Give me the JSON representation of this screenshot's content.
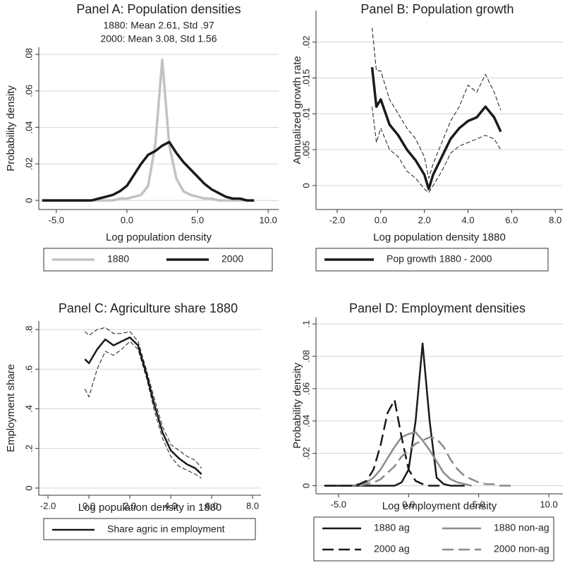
{
  "chart_data": [
    {
      "type": "line",
      "title": "Panel A: Population densities",
      "subtitle": [
        "1880: Mean 2.61, Std .97",
        "2000: Mean 3.08, Std 1.56"
      ],
      "x_label": "Log population density",
      "y_label": "Probability density",
      "x": [
        -6,
        -5.5,
        -5,
        -4.5,
        -4,
        -3.5,
        -3,
        -2.5,
        -2,
        -1.5,
        -1,
        -0.5,
        0,
        0.5,
        1,
        1.5,
        2,
        2.5,
        3,
        3.5,
        4,
        4.5,
        5,
        5.5,
        6,
        6.5,
        7,
        7.5,
        8,
        8.5,
        9
      ],
      "series": [
        {
          "name": "1880",
          "color": "#c2c2c2",
          "dashed": false,
          "linewidth": 3.5,
          "values": [
            0,
            0,
            0,
            0,
            0,
            0,
            0,
            0,
            0,
            0,
            0,
            0.001,
            0.001,
            0.002,
            0.003,
            0.008,
            0.03,
            0.077,
            0.03,
            0.012,
            0.005,
            0.003,
            0.002,
            0.001,
            0.001,
            0,
            0,
            0,
            0,
            0,
            0
          ]
        },
        {
          "name": "2000",
          "color": "#1a1a1a",
          "dashed": false,
          "linewidth": 3.5,
          "values": [
            0,
            0,
            0,
            0,
            0,
            0,
            0,
            0,
            0.001,
            0.002,
            0.003,
            0.005,
            0.008,
            0.014,
            0.02,
            0.025,
            0.027,
            0.03,
            0.032,
            0.026,
            0.021,
            0.017,
            0.013,
            0.009,
            0.006,
            0.004,
            0.002,
            0.001,
            0.001,
            0,
            0
          ]
        }
      ],
      "xlim": [
        -6.24,
        10.74
      ],
      "ylim": [
        -0.005,
        0.0839
      ],
      "xticks": [
        {
          "value": -5,
          "label": "-5.0"
        },
        {
          "value": 0,
          "label": "0.0"
        },
        {
          "value": 5,
          "label": "5.0"
        },
        {
          "value": 10,
          "label": "10.0"
        }
      ],
      "yticks": [
        0,
        {
          "value": 0.02,
          "label": ".02"
        },
        {
          "value": 0.04,
          "label": ".04"
        },
        {
          "value": 0.06,
          "label": ".06"
        },
        {
          "value": 0.08,
          "label": ".08"
        }
      ],
      "grid": true
    },
    {
      "type": "line",
      "title": "Panel B: Population growth",
      "x_label": "Log population density 1880",
      "y_label": "Annualized growth rate",
      "x": [
        -0.4,
        -0.2,
        0,
        0.4,
        0.8,
        1.2,
        1.6,
        2.0,
        2.2,
        2.4,
        2.8,
        3.2,
        3.6,
        4.0,
        4.4,
        4.8,
        5.2,
        5.5
      ],
      "series": [
        {
          "name": "Pop growth 1880 - 2000",
          "color": "#1a1a1a",
          "dashed": false,
          "linewidth": 3.5,
          "values": [
            0.0165,
            0.011,
            0.012,
            0.0085,
            0.007,
            0.005,
            0.0035,
            0.0015,
            -0.0005,
            0.0015,
            0.004,
            0.0065,
            0.008,
            0.009,
            0.0095,
            0.011,
            0.0095,
            0.0075
          ]
        },
        {
          "color": "#1a1a1a",
          "dashed": true,
          "linewidth": 1,
          "values": [
            0.022,
            0.016,
            0.016,
            0.012,
            0.01,
            0.008,
            0.0065,
            0.004,
            0.001,
            0.003,
            0.006,
            0.009,
            0.011,
            0.014,
            0.013,
            0.0155,
            0.013,
            0.0105
          ]
        },
        {
          "color": "#1a1a1a",
          "dashed": true,
          "linewidth": 1,
          "values": [
            0.011,
            0.006,
            0.008,
            0.005,
            0.004,
            0.002,
            0.001,
            -0.0005,
            -0.001,
            0,
            0.002,
            0.0045,
            0.0055,
            0.006,
            0.0065,
            0.007,
            0.0065,
            0.005
          ]
        }
      ],
      "xlim": [
        -2.97,
        8.35
      ],
      "ylim": [
        -0.00335,
        0.0244
      ],
      "xticks": [
        {
          "value": -2,
          "label": "-2.0"
        },
        {
          "value": 0,
          "label": "0.0"
        },
        {
          "value": 2,
          "label": "2.0"
        },
        {
          "value": 4,
          "label": "4.0"
        },
        {
          "value": 6,
          "label": "6.0"
        },
        {
          "value": 8,
          "label": "8.0"
        }
      ],
      "yticks": [
        0,
        {
          "value": 0.005,
          "label": ".005"
        },
        {
          "value": 0.01,
          "label": ".01"
        },
        {
          "value": 0.015,
          "label": ".015"
        },
        {
          "value": 0.02,
          "label": ".02"
        }
      ],
      "grid": true
    },
    {
      "type": "line",
      "title": "Panel C: Agriculture share 1880",
      "x_label": "Log population density in 1880",
      "y_label": "Employment share",
      "x": [
        -0.2,
        0,
        0.4,
        0.8,
        1.2,
        1.6,
        2.0,
        2.4,
        2.8,
        3.2,
        3.6,
        4.0,
        4.4,
        4.8,
        5.2,
        5.5
      ],
      "series": [
        {
          "name": "Share agric in employment",
          "color": "#1a1a1a",
          "dashed": false,
          "linewidth": 2.5,
          "values": [
            0.65,
            0.63,
            0.7,
            0.75,
            0.72,
            0.74,
            0.76,
            0.72,
            0.58,
            0.42,
            0.28,
            0.19,
            0.15,
            0.12,
            0.1,
            0.07
          ]
        },
        {
          "color": "#1a1a1a",
          "dashed": true,
          "linewidth": 1,
          "values": [
            0.79,
            0.77,
            0.8,
            0.81,
            0.78,
            0.78,
            0.79,
            0.74,
            0.6,
            0.45,
            0.31,
            0.22,
            0.19,
            0.16,
            0.14,
            0.1
          ]
        },
        {
          "color": "#1a1a1a",
          "dashed": true,
          "linewidth": 1,
          "values": [
            0.5,
            0.46,
            0.6,
            0.69,
            0.67,
            0.7,
            0.74,
            0.7,
            0.56,
            0.39,
            0.25,
            0.16,
            0.11,
            0.09,
            0.07,
            0.05
          ]
        }
      ],
      "xlim": [
        -2.45,
        8.41
      ],
      "ylim": [
        -0.036,
        0.843
      ],
      "xticks": [
        {
          "value": -2,
          "label": "-2.0"
        },
        {
          "value": 0,
          "label": "0.0"
        },
        {
          "value": 2,
          "label": "2.0"
        },
        {
          "value": 4,
          "label": "4.0"
        },
        {
          "value": 6,
          "label": "6.0"
        },
        {
          "value": 8,
          "label": "8.0"
        }
      ],
      "yticks": [
        0,
        {
          "value": 0.2,
          "label": ".2"
        },
        {
          "value": 0.4,
          "label": ".4"
        },
        {
          "value": 0.6,
          "label": ".6"
        },
        {
          "value": 0.8,
          "label": ".8"
        }
      ],
      "grid": true
    },
    {
      "type": "line",
      "title": "Panel D: Employment densities",
      "x_label": "Log employment density",
      "y_label": "Probability density",
      "x": [
        -6,
        -5.5,
        -5,
        -4.5,
        -4,
        -3.5,
        -3,
        -2.5,
        -2,
        -1.5,
        -1,
        -0.5,
        0,
        0.5,
        1,
        1.5,
        2,
        2.5,
        3,
        3.5,
        4,
        4.5,
        5,
        5.5,
        6,
        6.5,
        7,
        7.5
      ],
      "series": [
        {
          "name": "1880 ag",
          "color": "#1a1a1a",
          "dashed": false,
          "linewidth": 2.5,
          "values": [
            0,
            0,
            0,
            0,
            0,
            0,
            0,
            0,
            0,
            0,
            0,
            0.002,
            0.01,
            0.04,
            0.088,
            0.04,
            0.005,
            0.001,
            0,
            0,
            0,
            null,
            null,
            null,
            null,
            null,
            null,
            null
          ]
        },
        {
          "name": "1880 non-ag",
          "color": "#8a8a8a",
          "dashed": false,
          "linewidth": 2.5,
          "values": [
            null,
            null,
            null,
            null,
            0,
            0.001,
            0.002,
            0.005,
            0.01,
            0.017,
            0.024,
            0.03,
            0.032,
            0.033,
            0.028,
            0.022,
            0.015,
            0.008,
            0.004,
            0.002,
            0.001,
            0,
            null,
            null,
            null,
            null,
            null,
            null
          ]
        },
        {
          "name": "2000 ag",
          "color": "#1a1a1a",
          "dashed": true,
          "linewidth": 2.5,
          "values": [
            0,
            0,
            0,
            0,
            0,
            0.001,
            0.003,
            0.01,
            0.025,
            0.045,
            0.053,
            0.03,
            0.01,
            0.003,
            0.001,
            0,
            0,
            0,
            null,
            null,
            null,
            null,
            null,
            null,
            null,
            null,
            null,
            null
          ]
        },
        {
          "name": "2000 non-ag",
          "color": "#8a8a8a",
          "dashed": true,
          "linewidth": 2.5,
          "values": [
            null,
            null,
            null,
            null,
            null,
            0,
            0.001,
            0.002,
            0.004,
            0.008,
            0.012,
            0.018,
            0.022,
            0.026,
            0.028,
            0.03,
            0.029,
            0.024,
            0.016,
            0.01,
            0.006,
            0.004,
            0.002,
            0.001,
            0.001,
            0,
            0,
            0
          ]
        }
      ],
      "xlim": [
        -6.6,
        11.0
      ],
      "ylim": [
        -0.005,
        0.104
      ],
      "xticks": [
        {
          "value": -5,
          "label": "-5.0"
        },
        {
          "value": 0,
          "label": "0.0"
        },
        {
          "value": 5,
          "label": "5.0"
        },
        {
          "value": 10,
          "label": "10.0"
        }
      ],
      "yticks": [
        0,
        {
          "value": 0.02,
          "label": ".02"
        },
        {
          "value": 0.04,
          "label": ".04"
        },
        {
          "value": 0.06,
          "label": ".06"
        },
        {
          "value": 0.08,
          "label": ".08"
        },
        {
          "value": 0.1,
          "label": ".1"
        }
      ],
      "grid": true
    }
  ]
}
